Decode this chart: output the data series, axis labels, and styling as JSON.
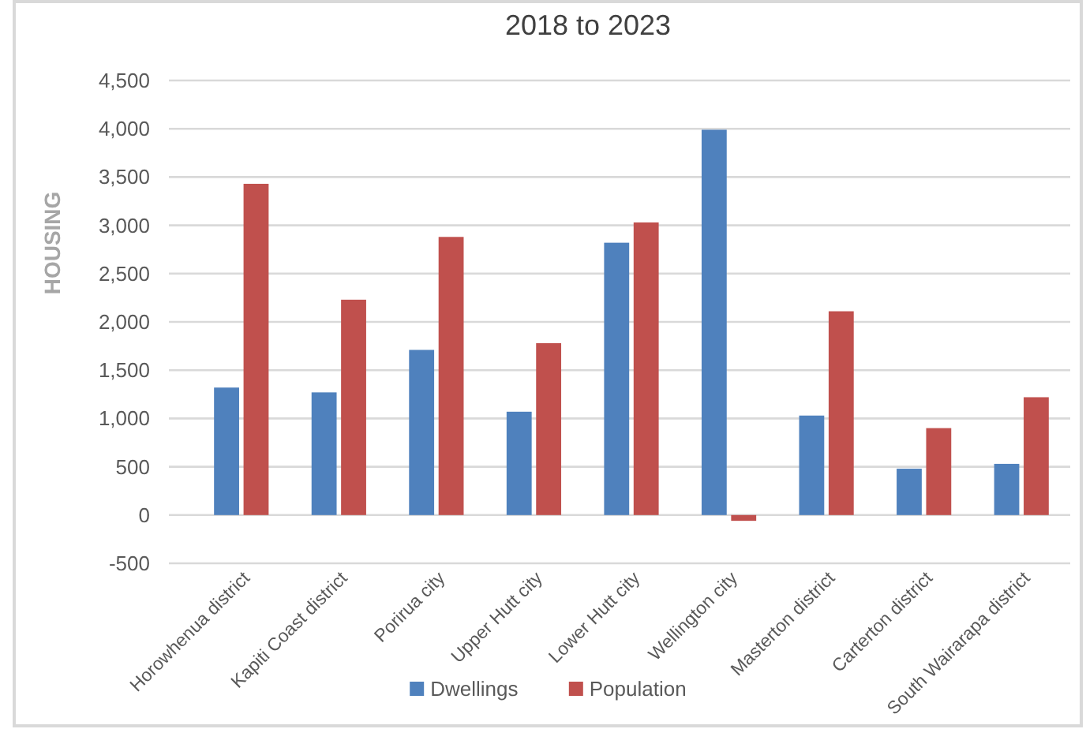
{
  "chart_data": {
    "type": "bar",
    "title": "2018 to 2023",
    "ylabel": "HOUSING",
    "categories": [
      "Horowhenua district",
      "Kapiti Coast district",
      "Porirua city",
      "Upper Hutt city",
      "Lower Hutt city",
      "Wellington city",
      "Masterton district",
      "Carterton district",
      "South Wairarapa district"
    ],
    "series": [
      {
        "name": "Dwellings",
        "color": "#4f81bd",
        "values": [
          1320,
          1270,
          1710,
          1070,
          2820,
          3990,
          1030,
          480,
          530
        ]
      },
      {
        "name": "Population",
        "color": "#c0504d",
        "values": [
          3430,
          2230,
          2880,
          1780,
          3030,
          -60,
          2110,
          900,
          1220
        ]
      }
    ],
    "ylim": [
      -500,
      4500
    ],
    "yticks": [
      {
        "value": -500,
        "label": "-500"
      },
      0,
      500,
      {
        "value": 1000,
        "label": "1,000"
      },
      {
        "value": 1500,
        "label": "1,500"
      },
      {
        "value": 2000,
        "label": "2,000"
      },
      {
        "value": 2500,
        "label": "2,500"
      },
      {
        "value": 3000,
        "label": "3,000"
      },
      {
        "value": 3500,
        "label": "3,500"
      },
      {
        "value": 4000,
        "label": "4,000"
      },
      {
        "value": 4500,
        "label": "4,500"
      }
    ],
    "grid": "y",
    "legend": "bottom"
  }
}
